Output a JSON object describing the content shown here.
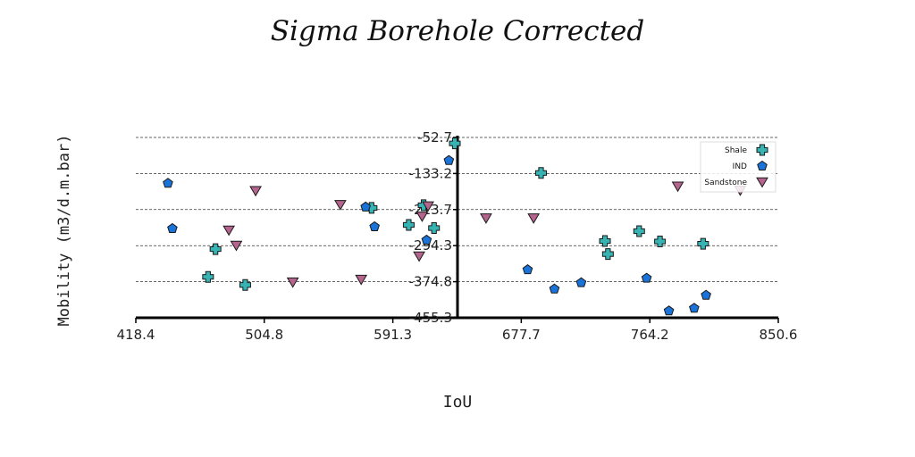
{
  "chart_data": {
    "type": "scatter",
    "title": "Sigma Borehole Corrected",
    "xlabel": "IoU",
    "ylabel": "Mobility (m3/d.m.bar)",
    "xlim": [
      418.4,
      850.6
    ],
    "ylim": [
      -455.3,
      -52.7
    ],
    "x_ticks": [
      "418.4",
      "504.8",
      "591.3",
      "677.7",
      "764.2",
      "850.6"
    ],
    "y_ticks": [
      "-52.7",
      "-133.2",
      "-213.7",
      "-294.3",
      "-374.8",
      "-455.3"
    ],
    "grid": "horizontal dashed",
    "legend_position": "top-right",
    "series": [
      {
        "name": "Shale",
        "marker": "plus",
        "color": "#36b3b3",
        "points": [
          [
            472,
            -302
          ],
          [
            467,
            -364
          ],
          [
            492,
            -382
          ],
          [
            577,
            -210
          ],
          [
            602,
            -248
          ],
          [
            612,
            -204
          ],
          [
            619,
            -255
          ],
          [
            633,
            -66
          ],
          [
            691,
            -132
          ],
          [
            734,
            -284
          ],
          [
            736,
            -313
          ],
          [
            757,
            -262
          ],
          [
            771,
            -285
          ],
          [
            800,
            -290
          ]
        ]
      },
      {
        "name": "IND",
        "marker": "pentagon",
        "color": "#1a73d9",
        "points": [
          [
            440,
            -155
          ],
          [
            443,
            -256
          ],
          [
            573,
            -208
          ],
          [
            579,
            -252
          ],
          [
            614,
            -282
          ],
          [
            629,
            -104
          ],
          [
            682,
            -348
          ],
          [
            700,
            -391
          ],
          [
            718,
            -377
          ],
          [
            762,
            -367
          ],
          [
            777,
            -440
          ],
          [
            794,
            -434
          ],
          [
            802,
            -405
          ]
        ]
      },
      {
        "name": "Sandstone",
        "marker": "triangle-down",
        "color": "#b5648e",
        "points": [
          [
            481,
            -260
          ],
          [
            486,
            -294
          ],
          [
            499,
            -172
          ],
          [
            524,
            -376
          ],
          [
            556,
            -203
          ],
          [
            570,
            -370
          ],
          [
            609,
            -318
          ],
          [
            611,
            -229
          ],
          [
            615,
            -206
          ],
          [
            654,
            -233
          ],
          [
            686,
            -233
          ],
          [
            783,
            -162
          ],
          [
            825,
            -171
          ]
        ]
      }
    ]
  }
}
